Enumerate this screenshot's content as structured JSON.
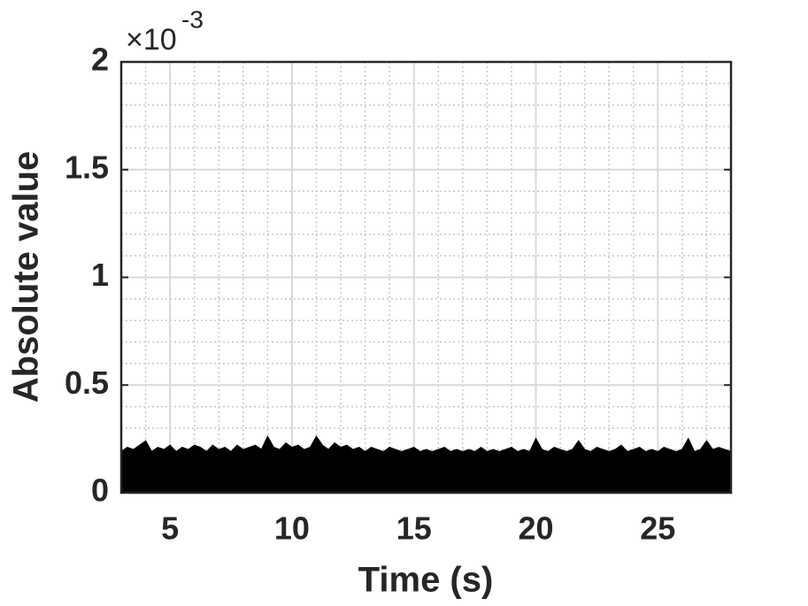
{
  "chart_data": {
    "type": "area",
    "color": "#000000",
    "xlabel": "Time (s)",
    "ylabel": "Absolute value",
    "y_multiplier": {
      "base": "×10",
      "exponent": "-3"
    },
    "xlim": [
      3,
      28
    ],
    "xticks": [
      5,
      10,
      15,
      20,
      25
    ],
    "ylim": [
      0,
      0.002
    ],
    "yticks": [
      {
        "value": 0,
        "label": "0"
      },
      {
        "value": 0.0005,
        "label": "0.5"
      },
      {
        "value": 0.001,
        "label": "1"
      },
      {
        "value": 0.0015,
        "label": "1.5"
      },
      {
        "value": 0.002,
        "label": "2"
      }
    ],
    "grid": true,
    "minor_grid": true,
    "x": [
      3,
      3.25,
      3.5,
      3.75,
      4,
      4.25,
      4.5,
      4.75,
      5,
      5.25,
      5.5,
      5.75,
      6,
      6.25,
      6.5,
      6.75,
      7,
      7.25,
      7.5,
      7.75,
      8,
      8.25,
      8.5,
      8.75,
      9,
      9.25,
      9.5,
      9.75,
      10,
      10.25,
      10.5,
      10.75,
      11,
      11.25,
      11.5,
      11.75,
      12,
      12.25,
      12.5,
      12.75,
      13,
      13.25,
      13.5,
      13.75,
      14,
      14.25,
      14.5,
      14.75,
      15,
      15.25,
      15.5,
      15.75,
      16,
      16.25,
      16.5,
      16.75,
      17,
      17.25,
      17.5,
      17.75,
      18,
      18.25,
      18.5,
      18.75,
      19,
      19.25,
      19.5,
      19.75,
      20,
      20.25,
      20.5,
      20.75,
      21,
      21.25,
      21.5,
      21.75,
      22,
      22.25,
      22.5,
      22.75,
      23,
      23.25,
      23.5,
      23.75,
      24,
      24.25,
      24.5,
      24.75,
      25,
      25.25,
      25.5,
      25.75,
      26,
      26.25,
      26.5,
      26.75,
      27,
      27.25,
      27.5,
      27.75,
      28
    ],
    "values": [
      0.00019,
      0.00021,
      0.0002,
      0.00022,
      0.00024,
      0.00019,
      0.00021,
      0.0002,
      0.00022,
      0.00019,
      0.00021,
      0.0002,
      0.00022,
      0.00021,
      0.00019,
      0.00022,
      0.0002,
      0.00021,
      0.00019,
      0.00022,
      0.0002,
      0.00021,
      0.00022,
      0.0002,
      0.00026,
      0.00021,
      0.0002,
      0.00023,
      0.00021,
      0.00022,
      0.0002,
      0.00021,
      0.00026,
      0.00022,
      0.0002,
      0.00023,
      0.00021,
      0.00022,
      0.0002,
      0.00021,
      0.00019,
      0.00021,
      0.0002,
      0.00019,
      0.00021,
      0.0002,
      0.00019,
      0.0002,
      0.00021,
      0.00019,
      0.0002,
      0.00019,
      0.0002,
      0.00021,
      0.00019,
      0.0002,
      0.00019,
      0.0002,
      0.00019,
      0.00021,
      0.00019,
      0.0002,
      0.00019,
      0.0002,
      0.00021,
      0.00019,
      0.0002,
      0.00019,
      0.00025,
      0.0002,
      0.00019,
      0.00021,
      0.0002,
      0.00019,
      0.0002,
      0.00024,
      0.0002,
      0.00019,
      0.00021,
      0.0002,
      0.00019,
      0.0002,
      0.00022,
      0.00019,
      0.0002,
      0.00021,
      0.00019,
      0.0002,
      0.00019,
      0.00021,
      0.0002,
      0.00019,
      0.0002,
      0.00025,
      0.00019,
      0.0002,
      0.00024,
      0.0002,
      0.00021,
      0.0002,
      0.00019
    ]
  }
}
